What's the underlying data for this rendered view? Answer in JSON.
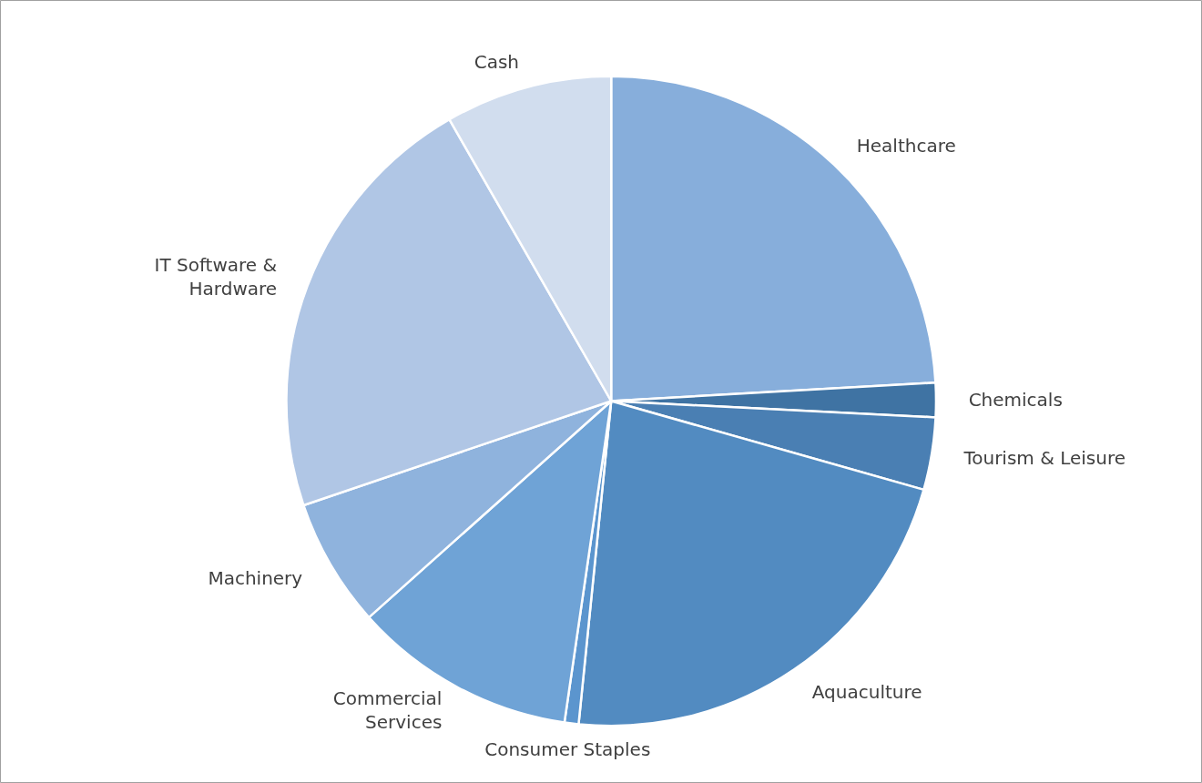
{
  "chart_data": {
    "type": "pie",
    "categories": [
      "Healthcare",
      "Chemicals",
      "Tourism & Leisure",
      "Aquaculture",
      "Consumer Staples",
      "Commercial Services",
      "Machinery",
      "IT Software & Hardware",
      "Cash"
    ],
    "values": [
      24.1,
      1.7,
      3.6,
      22.2,
      0.7,
      11.1,
      6.4,
      21.9,
      8.3
    ],
    "colors": [
      "#87aedb",
      "#3f73a3",
      "#4a7fb3",
      "#528bc1",
      "#5b95ce",
      "#6fa3d6",
      "#8fb3dd",
      "#b0c6e5",
      "#d1ddee"
    ]
  }
}
